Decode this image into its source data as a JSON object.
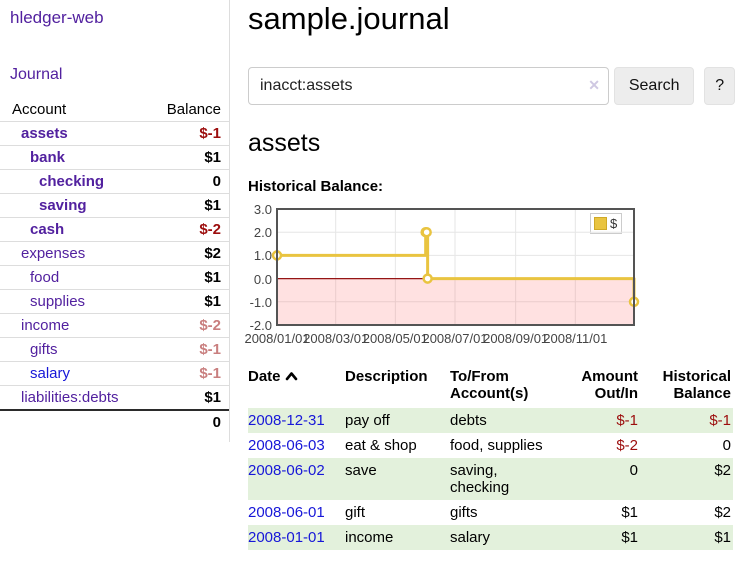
{
  "colors": {
    "link_purple": "#52219f",
    "link_blue": "#1717d8",
    "negative_strong": "#9c0d0d",
    "negative_soft": "#c97f7f",
    "row_stripe_green": "#e3f1dc"
  },
  "sidebar": {
    "brand": "hledger-web",
    "journal_link": "Journal",
    "columns": {
      "account": "Account",
      "balance": "Balance"
    },
    "accounts": [
      {
        "name": "assets",
        "balance": "$-1",
        "indent": 1,
        "bold": true,
        "neg": "strong"
      },
      {
        "name": "bank",
        "balance": "$1",
        "indent": 2,
        "bold": true
      },
      {
        "name": "checking",
        "balance": "0",
        "indent": 3,
        "bold": true
      },
      {
        "name": "saving",
        "balance": "$1",
        "indent": 3,
        "bold": true
      },
      {
        "name": "cash",
        "balance": "$-2",
        "indent": 2,
        "bold": true,
        "neg": "strong"
      },
      {
        "name": "expenses",
        "balance": "$2",
        "indent": 1
      },
      {
        "name": "food",
        "balance": "$1",
        "indent": 2
      },
      {
        "name": "supplies",
        "balance": "$1",
        "indent": 2
      },
      {
        "name": "income",
        "balance": "$-2",
        "indent": 1,
        "neg": "soft"
      },
      {
        "name": "gifts",
        "balance": "$-1",
        "indent": 2,
        "neg": "soft"
      },
      {
        "name": "salary",
        "balance": "$-1",
        "indent": 2,
        "neg": "soft",
        "blue": true
      },
      {
        "name": "liabilities:debts",
        "balance": "$1",
        "indent": 1
      }
    ],
    "total": "0"
  },
  "header": {
    "title": "sample.journal"
  },
  "search": {
    "value": "inacct:assets",
    "clear_icon": "✕",
    "button_label": "Search",
    "help_label": "?"
  },
  "main": {
    "account_heading": "assets",
    "table": {
      "columns": [
        {
          "label": "Date",
          "align": "left",
          "sortable": true,
          "sort_dir": "asc"
        },
        {
          "label": "Description",
          "align": "left"
        },
        {
          "label": "To/From Account(s)",
          "align": "left"
        },
        {
          "label": "Amount Out/In",
          "align": "right"
        },
        {
          "label": "Historical Balance",
          "align": "right"
        }
      ],
      "rows": [
        {
          "date": "2008-12-31",
          "description": "pay off",
          "accounts": "debts",
          "amount": "$-1",
          "balance": "$-1"
        },
        {
          "date": "2008-06-03",
          "description": "eat & shop",
          "accounts": "food, supplies",
          "amount": "$-2",
          "balance": "0"
        },
        {
          "date": "2008-06-02",
          "description": "save",
          "accounts": "saving, checking",
          "amount": "0",
          "balance": "$2"
        },
        {
          "date": "2008-06-01",
          "description": "gift",
          "accounts": "gifts",
          "amount": "$1",
          "balance": "$2"
        },
        {
          "date": "2008-01-01",
          "description": "income",
          "accounts": "salary",
          "amount": "$1",
          "balance": "$1"
        }
      ]
    }
  },
  "chart_data": {
    "type": "line",
    "title": "Historical Balance:",
    "step": true,
    "series": [
      {
        "name": "$",
        "color": "#e9c440",
        "marker_fill": "#ffffff",
        "points": [
          {
            "date": "2008-01-01",
            "x": 0,
            "y": 1
          },
          {
            "date": "2008-06-01",
            "x": 152,
            "y": 2
          },
          {
            "date": "2008-06-02",
            "x": 153,
            "y": 2
          },
          {
            "date": "2008-06-03",
            "x": 154,
            "y": 0
          },
          {
            "date": "2008-12-31",
            "x": 365,
            "y": -1
          }
        ]
      }
    ],
    "xlim": [
      0,
      365
    ],
    "ylim": [
      -2,
      3
    ],
    "x_ticks": [
      {
        "label": "2008/01/01",
        "x": 0
      },
      {
        "label": "2008/03/01",
        "x": 60
      },
      {
        "label": "2008/05/01",
        "x": 121
      },
      {
        "label": "2008/07/01",
        "x": 182
      },
      {
        "label": "2008/09/01",
        "x": 244
      },
      {
        "label": "2008/11/01",
        "x": 305
      }
    ],
    "y_ticks": [
      "3.0",
      "2.0",
      "1.0",
      "0.0",
      "-1.0",
      "-2.0"
    ],
    "grid": true,
    "grid_color": "#e6e6e6",
    "border_color": "#545454",
    "negative_region_color": "rgba(255,70,70,0.16)",
    "zero_line_color": "#951515",
    "legend_position": "top-right"
  }
}
